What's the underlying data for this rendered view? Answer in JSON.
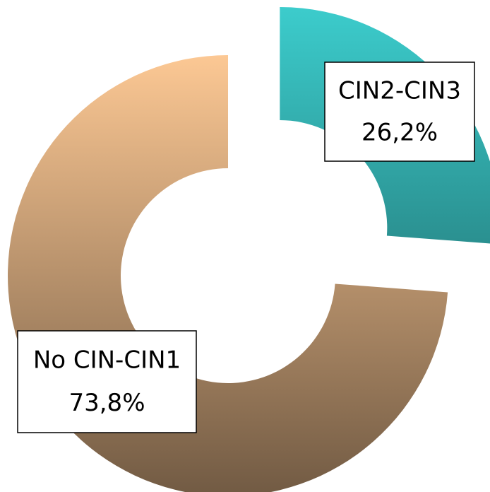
{
  "chart_data": {
    "type": "donut",
    "categories": [
      "CIN2-CIN3",
      "No CIN-CIN1"
    ],
    "values": [
      26.2,
      73.8
    ],
    "value_labels": [
      "26,2%",
      "73,8%"
    ],
    "colors": [
      "#3ccccc",
      "#fcc894"
    ]
  }
}
